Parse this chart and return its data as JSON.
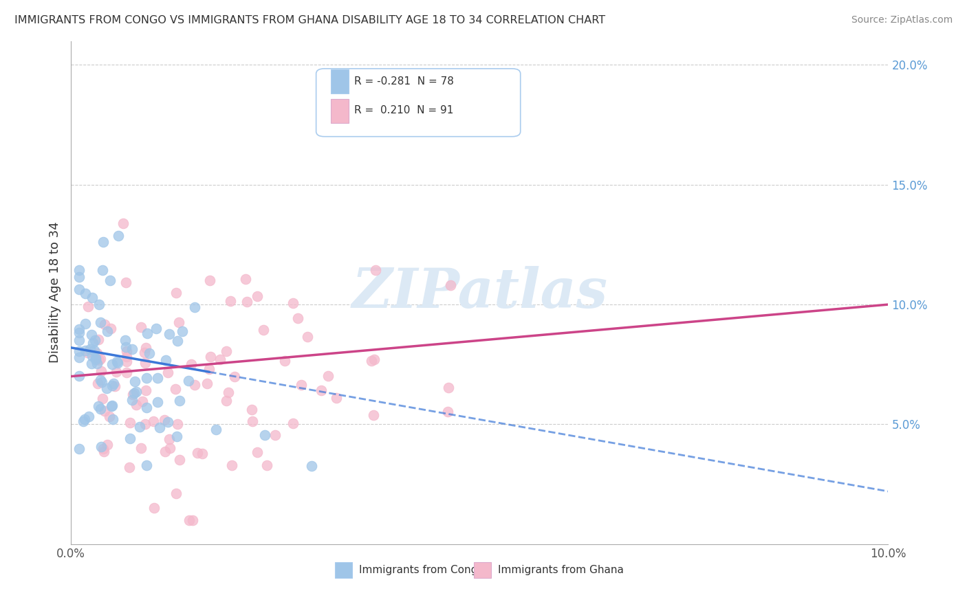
{
  "title": "IMMIGRANTS FROM CONGO VS IMMIGRANTS FROM GHANA DISABILITY AGE 18 TO 34 CORRELATION CHART",
  "source": "Source: ZipAtlas.com",
  "ylabel": "Disability Age 18 to 34",
  "xlim": [
    0.0,
    0.1
  ],
  "ylim": [
    0.0,
    0.21
  ],
  "legend_r_congo": "-0.281",
  "legend_n_congo": "78",
  "legend_r_ghana": "0.210",
  "legend_n_ghana": "91",
  "color_congo": "#9fc5e8",
  "color_ghana": "#f4b8cb",
  "color_congo_line": "#3c78d8",
  "color_ghana_line": "#cc4488",
  "watermark_color": "#dce9f5",
  "background_color": "#ffffff",
  "grid_color": "#cccccc",
  "congo_line_start_y": 0.082,
  "congo_line_end_y": 0.022,
  "ghana_line_start_y": 0.07,
  "ghana_line_end_y": 0.1
}
